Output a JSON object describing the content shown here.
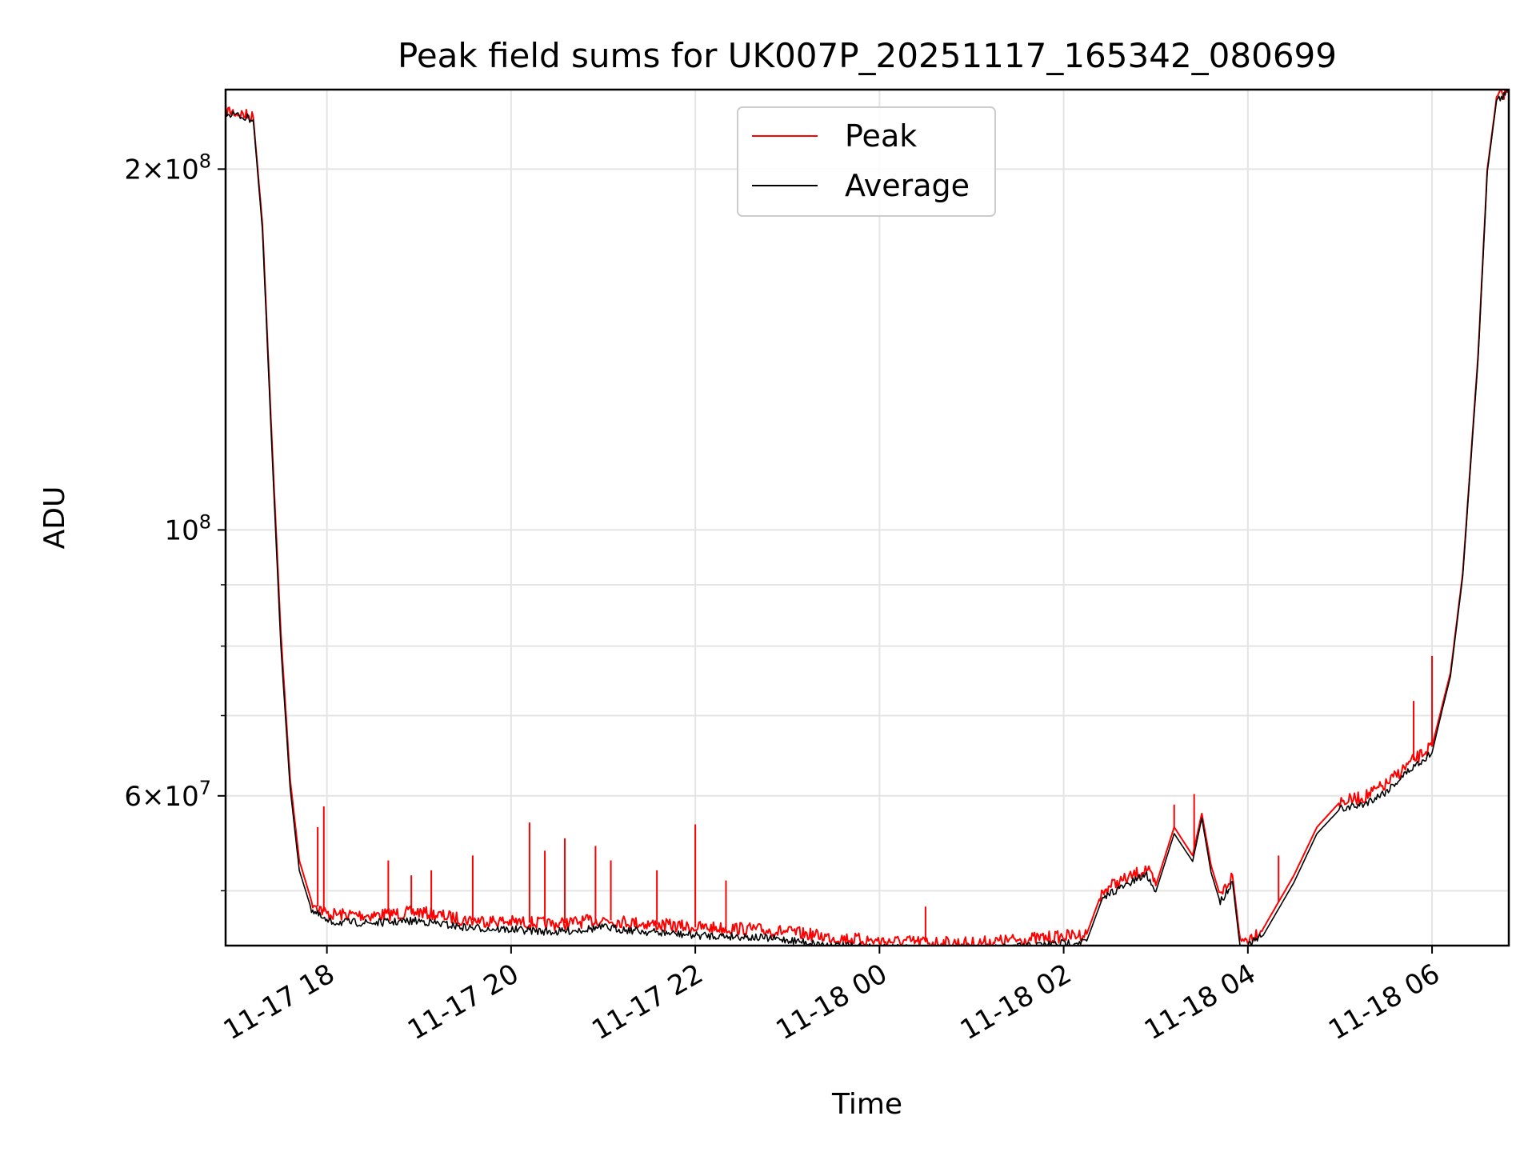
{
  "chart_data": {
    "type": "line",
    "title": "Peak field sums for UK007P_20251117_165342_080699",
    "xlabel": "Time",
    "ylabel": "ADU",
    "yscale": "log",
    "ylim": [
      45000000,
      233000000
    ],
    "xlim": [
      "2025-11-17T16:54",
      "2025-11-18T06:50"
    ],
    "grid": true,
    "legend": "top-center",
    "x_ticks": [
      {
        "value": "2025-11-17T18:00",
        "label": "11-17 18"
      },
      {
        "value": "2025-11-17T20:00",
        "label": "11-17 20"
      },
      {
        "value": "2025-11-17T22:00",
        "label": "11-17 22"
      },
      {
        "value": "2025-11-18T00:00",
        "label": "11-18 00"
      },
      {
        "value": "2025-11-18T02:00",
        "label": "11-18 02"
      },
      {
        "value": "2025-11-18T04:00",
        "label": "11-18 04"
      },
      {
        "value": "2025-11-18T06:00",
        "label": "11-18 06"
      }
    ],
    "y_ticks": [
      {
        "value": 60000000,
        "base": "6",
        "exp": "7"
      },
      {
        "value": 100000000,
        "base": "",
        "exp": "8"
      },
      {
        "value": 200000000,
        "base": "2",
        "exp": "8"
      }
    ],
    "y_minor_ticks": [
      50000000,
      70000000,
      80000000,
      90000000
    ],
    "series": [
      {
        "name": "Peak",
        "color": "#ff0000",
        "points": [
          [
            "2025-11-17T16:54",
            224000000
          ],
          [
            "2025-11-17T17:06",
            222000000
          ],
          [
            "2025-11-17T17:12",
            221000000
          ],
          [
            "2025-11-17T17:18",
            180000000
          ],
          [
            "2025-11-17T17:24",
            120000000
          ],
          [
            "2025-11-17T17:30",
            82000000
          ],
          [
            "2025-11-17T17:36",
            62000000
          ],
          [
            "2025-11-17T17:42",
            53000000
          ],
          [
            "2025-11-17T17:50",
            49000000
          ],
          [
            "2025-11-17T18:00",
            47800000
          ],
          [
            "2025-11-17T18:30",
            47700000
          ],
          [
            "2025-11-17T19:00",
            48000000
          ],
          [
            "2025-11-17T19:30",
            47300000
          ],
          [
            "2025-11-17T20:00",
            47100000
          ],
          [
            "2025-11-17T20:30",
            46900000
          ],
          [
            "2025-11-17T21:00",
            47300000
          ],
          [
            "2025-11-17T21:30",
            46900000
          ],
          [
            "2025-11-17T22:00",
            46600000
          ],
          [
            "2025-11-17T22:30",
            46500000
          ],
          [
            "2025-11-17T23:00",
            46200000
          ],
          [
            "2025-11-17T23:30",
            45700000
          ],
          [
            "2025-11-18T00:00",
            45400000
          ],
          [
            "2025-11-18T00:30",
            45300000
          ],
          [
            "2025-11-18T01:00",
            45200000
          ],
          [
            "2025-11-18T01:30",
            45500000
          ],
          [
            "2025-11-18T02:00",
            45800000
          ],
          [
            "2025-11-18T02:15",
            46000000
          ],
          [
            "2025-11-18T02:24",
            49500000
          ],
          [
            "2025-11-18T02:30",
            50500000
          ],
          [
            "2025-11-18T02:42",
            51200000
          ],
          [
            "2025-11-18T02:54",
            52200000
          ],
          [
            "2025-11-18T03:00",
            50500000
          ],
          [
            "2025-11-18T03:12",
            56500000
          ],
          [
            "2025-11-18T03:24",
            53500000
          ],
          [
            "2025-11-18T03:30",
            58000000
          ],
          [
            "2025-11-18T03:36",
            52500000
          ],
          [
            "2025-11-18T03:42",
            49500000
          ],
          [
            "2025-11-18T03:50",
            51500000
          ],
          [
            "2025-11-18T03:55",
            45400000
          ],
          [
            "2025-11-18T04:00",
            45600000
          ],
          [
            "2025-11-18T04:10",
            46500000
          ],
          [
            "2025-11-18T04:30",
            51500000
          ],
          [
            "2025-11-18T04:45",
            56500000
          ],
          [
            "2025-11-18T05:00",
            59300000
          ],
          [
            "2025-11-18T05:15",
            59800000
          ],
          [
            "2025-11-18T05:30",
            61300000
          ],
          [
            "2025-11-18T05:45",
            63800000
          ],
          [
            "2025-11-18T06:00",
            66000000
          ],
          [
            "2025-11-18T06:05",
            70000000
          ],
          [
            "2025-11-18T06:12",
            76000000
          ],
          [
            "2025-11-18T06:20",
            92000000
          ],
          [
            "2025-11-18T06:30",
            140000000
          ],
          [
            "2025-11-18T06:36",
            200000000
          ],
          [
            "2025-11-18T06:42",
            229000000
          ],
          [
            "2025-11-18T06:50",
            233000000
          ]
        ]
      },
      {
        "name": "Average",
        "color": "#000000",
        "points": [
          [
            "2025-11-17T16:54",
            223000000
          ],
          [
            "2025-11-17T17:06",
            221000000
          ],
          [
            "2025-11-17T17:12",
            220000000
          ],
          [
            "2025-11-17T17:18",
            178000000
          ],
          [
            "2025-11-17T17:24",
            118000000
          ],
          [
            "2025-11-17T17:30",
            80000000
          ],
          [
            "2025-11-17T17:36",
            61000000
          ],
          [
            "2025-11-17T17:42",
            52000000
          ],
          [
            "2025-11-17T17:50",
            48200000
          ],
          [
            "2025-11-17T18:00",
            47100000
          ],
          [
            "2025-11-17T18:30",
            47000000
          ],
          [
            "2025-11-17T19:00",
            47200000
          ],
          [
            "2025-11-17T19:30",
            46600000
          ],
          [
            "2025-11-17T20:00",
            46400000
          ],
          [
            "2025-11-17T20:30",
            46200000
          ],
          [
            "2025-11-17T21:00",
            46600000
          ],
          [
            "2025-11-17T21:30",
            46200000
          ],
          [
            "2025-11-17T22:00",
            45900000
          ],
          [
            "2025-11-17T22:30",
            45800000
          ],
          [
            "2025-11-17T23:00",
            45500000
          ],
          [
            "2025-11-17T23:30",
            45000000
          ],
          [
            "2025-11-18T00:00",
            44800000
          ],
          [
            "2025-11-18T00:30",
            44700000
          ],
          [
            "2025-11-18T01:00",
            44600000
          ],
          [
            "2025-11-18T01:30",
            44900000
          ],
          [
            "2025-11-18T02:00",
            45200000
          ],
          [
            "2025-11-18T02:15",
            45400000
          ],
          [
            "2025-11-18T02:24",
            48800000
          ],
          [
            "2025-11-18T02:30",
            49800000
          ],
          [
            "2025-11-18T02:42",
            50600000
          ],
          [
            "2025-11-18T02:54",
            51600000
          ],
          [
            "2025-11-18T03:00",
            49900000
          ],
          [
            "2025-11-18T03:12",
            55800000
          ],
          [
            "2025-11-18T03:24",
            52900000
          ],
          [
            "2025-11-18T03:30",
            57500000
          ],
          [
            "2025-11-18T03:36",
            51800000
          ],
          [
            "2025-11-18T03:42",
            48900000
          ],
          [
            "2025-11-18T03:50",
            50900000
          ],
          [
            "2025-11-18T03:55",
            44800000
          ],
          [
            "2025-11-18T04:00",
            45000000
          ],
          [
            "2025-11-18T04:10",
            45900000
          ],
          [
            "2025-11-18T04:30",
            50800000
          ],
          [
            "2025-11-18T04:45",
            55800000
          ],
          [
            "2025-11-18T05:00",
            58500000
          ],
          [
            "2025-11-18T05:15",
            59000000
          ],
          [
            "2025-11-18T05:30",
            60500000
          ],
          [
            "2025-11-18T05:45",
            63000000
          ],
          [
            "2025-11-18T06:00",
            65200000
          ],
          [
            "2025-11-18T06:05",
            69400000
          ],
          [
            "2025-11-18T06:12",
            75500000
          ],
          [
            "2025-11-18T06:20",
            91500000
          ],
          [
            "2025-11-18T06:30",
            139000000
          ],
          [
            "2025-11-18T06:36",
            199000000
          ],
          [
            "2025-11-18T06:42",
            228000000
          ],
          [
            "2025-11-18T06:50",
            232000000
          ]
        ]
      }
    ],
    "spikes": [
      [
        "2025-11-17T17:54",
        56500000
      ],
      [
        "2025-11-17T17:58",
        58800000
      ],
      [
        "2025-11-17T18:40",
        53000000
      ],
      [
        "2025-11-17T18:55",
        51500000
      ],
      [
        "2025-11-17T19:08",
        52000000
      ],
      [
        "2025-11-17T19:35",
        53500000
      ],
      [
        "2025-11-17T20:12",
        57000000
      ],
      [
        "2025-11-17T20:22",
        54000000
      ],
      [
        "2025-11-17T20:35",
        55300000
      ],
      [
        "2025-11-17T20:55",
        54500000
      ],
      [
        "2025-11-17T21:05",
        53000000
      ],
      [
        "2025-11-17T21:35",
        52000000
      ],
      [
        "2025-11-17T22:00",
        56800000
      ],
      [
        "2025-11-17T22:20",
        51000000
      ],
      [
        "2025-11-18T00:30",
        48500000
      ],
      [
        "2025-11-18T03:12",
        59000000
      ],
      [
        "2025-11-18T03:25",
        60200000
      ],
      [
        "2025-11-18T04:20",
        53500000
      ],
      [
        "2025-11-18T05:48",
        72000000
      ],
      [
        "2025-11-18T06:00",
        78500000
      ]
    ]
  }
}
